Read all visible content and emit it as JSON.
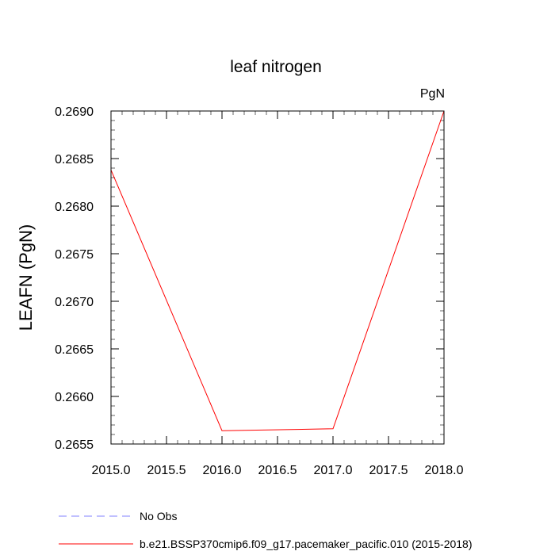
{
  "chart_data": {
    "type": "line",
    "title": "leaf nitrogen",
    "units_label": "PgN",
    "xlabel": "",
    "ylabel": "LEAFN  (PgN)",
    "xlim": [
      2015.0,
      2018.0
    ],
    "ylim": [
      0.2655,
      0.269
    ],
    "x_ticks": [
      "2015.0",
      "2015.5",
      "2016.0",
      "2016.5",
      "2017.0",
      "2017.5",
      "2018.0"
    ],
    "y_ticks": [
      "0.2655",
      "0.2660",
      "0.2665",
      "0.2670",
      "0.2675",
      "0.2680",
      "0.2685",
      "0.2690"
    ],
    "grid": false,
    "legend_position": "bottom-left",
    "series": [
      {
        "name": "b.e21.BSSP370cmip6.f09_g17.pacemaker_pacific.010 (2015-2018)",
        "color": "#ff0000",
        "style": "solid",
        "x": [
          2015,
          2016,
          2017,
          2018
        ],
        "values": [
          0.26838,
          0.26564,
          0.26566,
          0.269
        ]
      }
    ],
    "legend": [
      {
        "label": "No Obs",
        "color": "#8080ff",
        "style": "dashed"
      },
      {
        "label": "b.e21.BSSP370cmip6.f09_g17.pacemaker_pacific.010 (2015-2018)",
        "color": "#ff0000",
        "style": "solid"
      }
    ]
  }
}
